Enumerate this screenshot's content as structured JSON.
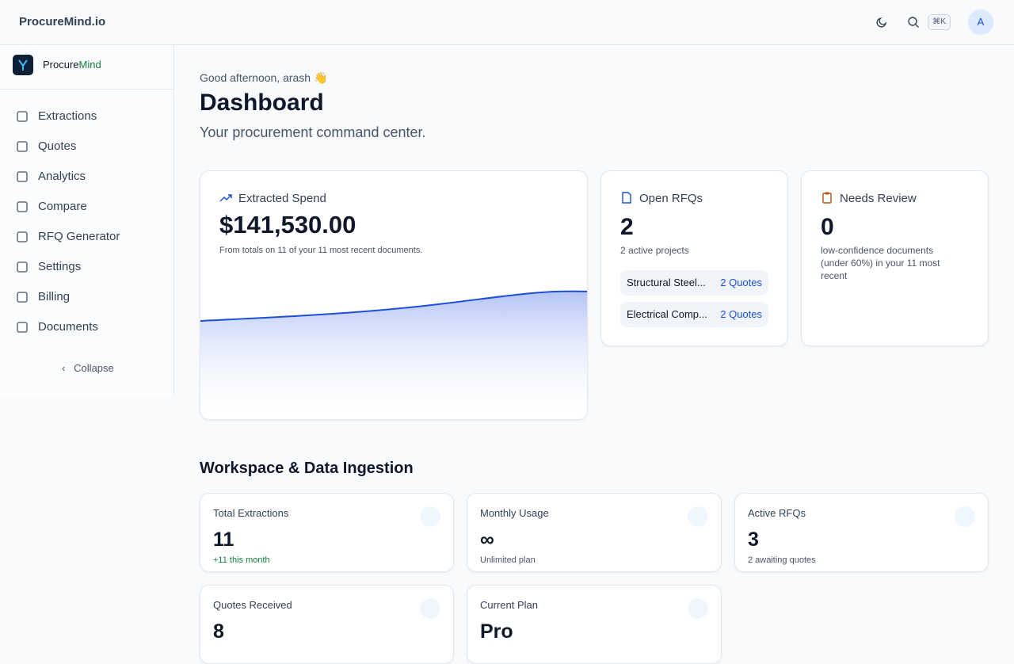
{
  "topbar": {
    "brand": "ProcureMind.io",
    "shortcut": "⌘K",
    "avatar": "A"
  },
  "sidebar": {
    "brand_a": "Procure",
    "brand_b": "Mind",
    "nav": [
      "Extractions",
      "Quotes",
      "Analytics",
      "Compare",
      "RFQ Generator",
      "Settings",
      "Billing",
      "Documents"
    ],
    "collapse": "Collapse"
  },
  "header": {
    "greeting": "Good afternoon, arash 👋",
    "title": "Dashboard",
    "subtitle": "Your procurement command center."
  },
  "spend": {
    "label": "Extracted Spend",
    "value": "$141,530.00",
    "note": "From totals on 11 of your 11 most recent documents."
  },
  "rfqs": {
    "label": "Open RFQs",
    "value": "2",
    "note": "2 active projects",
    "items": [
      {
        "name": "Structural Steel...",
        "quotes": "2 Quotes"
      },
      {
        "name": "Electrical Comp...",
        "quotes": "2 Quotes"
      }
    ]
  },
  "review": {
    "label": "Needs Review",
    "value": "0",
    "note": "low-confidence documents (under 60%) in your 11 most recent"
  },
  "workspace": {
    "title": "Workspace & Data Ingestion",
    "cards": [
      {
        "label": "Total Extractions",
        "value": "11",
        "note": "+11 this month"
      },
      {
        "label": "Monthly Usage",
        "value": "∞",
        "note": "Unlimited plan"
      },
      {
        "label": "Active RFQs",
        "value": "3",
        "note": "2 awaiting quotes"
      },
      {
        "label": "Quotes Received",
        "value": "8",
        "note": ""
      },
      {
        "label": "Current Plan",
        "value": "Pro",
        "note": ""
      }
    ]
  }
}
